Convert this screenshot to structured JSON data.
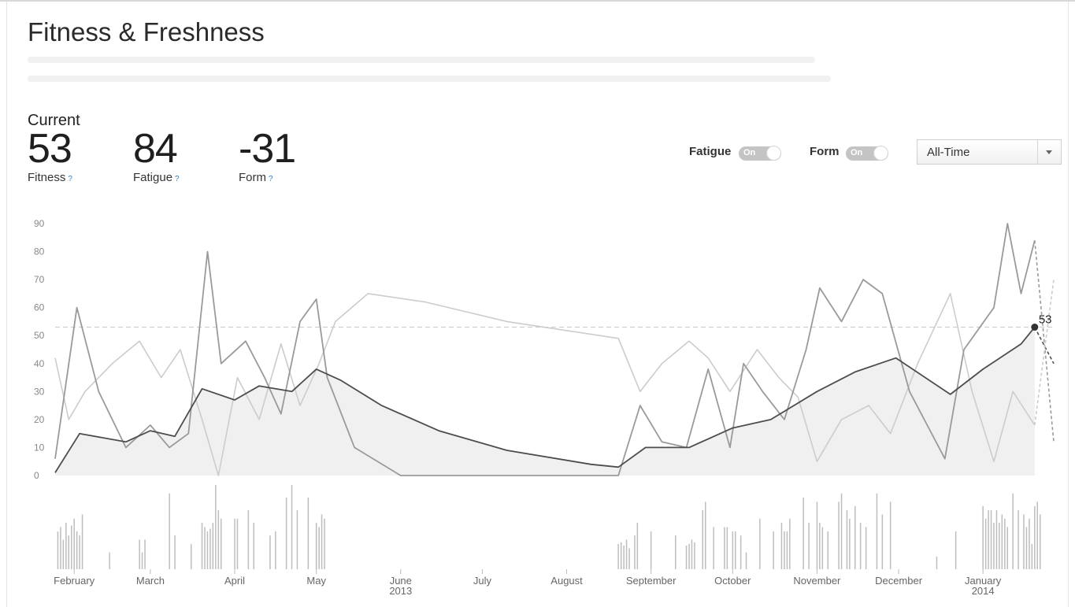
{
  "page": {
    "title": "Fitness & Freshness",
    "current_label": "Current"
  },
  "stats": [
    {
      "key": "fitness",
      "value": "53",
      "label": "Fitness",
      "help": "?"
    },
    {
      "key": "fatigue",
      "value": "84",
      "label": "Fatigue",
      "help": "?"
    },
    {
      "key": "form",
      "value": "-31",
      "label": "Form",
      "help": "?"
    }
  ],
  "controls": {
    "fatigue_toggle": {
      "label": "Fatigue",
      "state": "On"
    },
    "form_toggle": {
      "label": "Form",
      "state": "On"
    },
    "range_select": {
      "value": "All-Time",
      "icon": "chevron-down-icon"
    }
  },
  "colors": {
    "fitness": "#4d4d4d",
    "fatigue": "#9a9a9a",
    "form": "#cccccc",
    "fitness_fill": "#f0f0f0",
    "activity_bars": "#bdbdbd",
    "reference_line": "#c8c8c8"
  },
  "chart_data": {
    "type": "line",
    "x_range": [
      "2013-01-25",
      "2014-01-27"
    ],
    "ylim": [
      0,
      90
    ],
    "yticks": [
      0,
      10,
      20,
      30,
      40,
      50,
      60,
      70,
      80,
      90
    ],
    "grid": false,
    "reference_line": 53,
    "current_marker": {
      "date": "2014-01-20",
      "value": 53,
      "label": "53"
    },
    "xticks": [
      {
        "date": "2013-02-01",
        "label": "February",
        "sub": ""
      },
      {
        "date": "2013-03-01",
        "label": "March",
        "sub": ""
      },
      {
        "date": "2013-04-01",
        "label": "April",
        "sub": ""
      },
      {
        "date": "2013-05-01",
        "label": "May",
        "sub": ""
      },
      {
        "date": "2013-06-01",
        "label": "June",
        "sub": "2013"
      },
      {
        "date": "2013-07-01",
        "label": "July",
        "sub": ""
      },
      {
        "date": "2013-08-01",
        "label": "August",
        "sub": ""
      },
      {
        "date": "2013-09-01",
        "label": "September",
        "sub": ""
      },
      {
        "date": "2013-10-01",
        "label": "October",
        "sub": ""
      },
      {
        "date": "2013-11-01",
        "label": "November",
        "sub": ""
      },
      {
        "date": "2013-12-01",
        "label": "December",
        "sub": ""
      },
      {
        "date": "2014-01-01",
        "label": "January",
        "sub": "2014"
      }
    ],
    "series": [
      {
        "key": "fitness",
        "points": [
          [
            "2013-01-25",
            1
          ],
          [
            "2013-02-03",
            15
          ],
          [
            "2013-02-20",
            12
          ],
          [
            "2013-03-01",
            16
          ],
          [
            "2013-03-10",
            14
          ],
          [
            "2013-03-20",
            31
          ],
          [
            "2013-04-01",
            27
          ],
          [
            "2013-04-10",
            32
          ],
          [
            "2013-04-22",
            30
          ],
          [
            "2013-05-01",
            38
          ],
          [
            "2013-05-10",
            34
          ],
          [
            "2013-05-25",
            25
          ],
          [
            "2013-06-15",
            16
          ],
          [
            "2013-07-10",
            9
          ],
          [
            "2013-08-10",
            4
          ],
          [
            "2013-08-20",
            3
          ],
          [
            "2013-08-30",
            10
          ],
          [
            "2013-09-15",
            10
          ],
          [
            "2013-10-01",
            17
          ],
          [
            "2013-10-15",
            20
          ],
          [
            "2013-11-01",
            30
          ],
          [
            "2013-11-15",
            37
          ],
          [
            "2013-11-30",
            42
          ],
          [
            "2013-12-20",
            29
          ],
          [
            "2014-01-01",
            38
          ],
          [
            "2014-01-15",
            47
          ],
          [
            "2014-01-20",
            53
          ]
        ]
      },
      {
        "key": "fatigue",
        "points": [
          [
            "2013-01-25",
            6
          ],
          [
            "2013-02-02",
            60
          ],
          [
            "2013-02-10",
            30
          ],
          [
            "2013-02-20",
            10
          ],
          [
            "2013-03-01",
            18
          ],
          [
            "2013-03-08",
            10
          ],
          [
            "2013-03-15",
            15
          ],
          [
            "2013-03-22",
            80
          ],
          [
            "2013-03-27",
            40
          ],
          [
            "2013-04-05",
            48
          ],
          [
            "2013-04-12",
            35
          ],
          [
            "2013-04-18",
            22
          ],
          [
            "2013-04-25",
            55
          ],
          [
            "2013-05-01",
            63
          ],
          [
            "2013-05-05",
            35
          ],
          [
            "2013-05-15",
            10
          ],
          [
            "2013-06-01",
            0
          ],
          [
            "2013-06-30",
            0
          ],
          [
            "2013-08-20",
            0
          ],
          [
            "2013-08-28",
            25
          ],
          [
            "2013-09-05",
            12
          ],
          [
            "2013-09-14",
            10
          ],
          [
            "2013-09-22",
            38
          ],
          [
            "2013-09-30",
            10
          ],
          [
            "2013-10-05",
            40
          ],
          [
            "2013-10-12",
            30
          ],
          [
            "2013-10-20",
            20
          ],
          [
            "2013-10-28",
            45
          ],
          [
            "2013-11-02",
            67
          ],
          [
            "2013-11-10",
            55
          ],
          [
            "2013-11-18",
            70
          ],
          [
            "2013-11-25",
            65
          ],
          [
            "2013-12-05",
            30
          ],
          [
            "2013-12-18",
            6
          ],
          [
            "2013-12-25",
            45
          ],
          [
            "2014-01-05",
            60
          ],
          [
            "2014-01-10",
            90
          ],
          [
            "2014-01-15",
            65
          ],
          [
            "2014-01-20",
            84
          ]
        ]
      },
      {
        "key": "form",
        "points": [
          [
            "2013-01-25",
            42
          ],
          [
            "2013-01-30",
            20
          ],
          [
            "2013-02-05",
            30
          ],
          [
            "2013-02-15",
            40
          ],
          [
            "2013-02-25",
            48
          ],
          [
            "2013-03-05",
            35
          ],
          [
            "2013-03-12",
            45
          ],
          [
            "2013-03-20",
            20
          ],
          [
            "2013-03-26",
            0
          ],
          [
            "2013-04-02",
            35
          ],
          [
            "2013-04-10",
            20
          ],
          [
            "2013-04-18",
            47
          ],
          [
            "2013-04-25",
            25
          ],
          [
            "2013-05-02",
            40
          ],
          [
            "2013-05-08",
            55
          ],
          [
            "2013-05-20",
            65
          ],
          [
            "2013-06-10",
            62
          ],
          [
            "2013-07-10",
            55
          ],
          [
            "2013-08-20",
            49
          ],
          [
            "2013-08-28",
            30
          ],
          [
            "2013-09-05",
            40
          ],
          [
            "2013-09-15",
            48
          ],
          [
            "2013-09-22",
            42
          ],
          [
            "2013-09-30",
            30
          ],
          [
            "2013-10-10",
            45
          ],
          [
            "2013-10-18",
            35
          ],
          [
            "2013-10-25",
            28
          ],
          [
            "2013-11-01",
            5
          ],
          [
            "2013-11-10",
            20
          ],
          [
            "2013-11-20",
            25
          ],
          [
            "2013-11-28",
            15
          ],
          [
            "2013-12-08",
            40
          ],
          [
            "2013-12-20",
            65
          ],
          [
            "2013-12-28",
            30
          ],
          [
            "2014-01-05",
            5
          ],
          [
            "2014-01-12",
            30
          ],
          [
            "2014-01-20",
            18
          ]
        ]
      }
    ],
    "projections": [
      {
        "key": "fitness",
        "points": [
          [
            "2014-01-20",
            53
          ],
          [
            "2014-01-27",
            40
          ]
        ]
      },
      {
        "key": "fatigue",
        "points": [
          [
            "2014-01-20",
            84
          ],
          [
            "2014-01-27",
            12
          ]
        ]
      },
      {
        "key": "form",
        "points": [
          [
            "2014-01-20",
            18
          ],
          [
            "2014-01-27",
            70
          ]
        ]
      }
    ],
    "activity": [
      [
        "2013-01-26",
        0.45
      ],
      [
        "2013-01-27",
        0.5
      ],
      [
        "2013-01-28",
        0.35
      ],
      [
        "2013-01-29",
        0.55
      ],
      [
        "2013-01-30",
        0.4
      ],
      [
        "2013-01-31",
        0.52
      ],
      [
        "2013-02-01",
        0.6
      ],
      [
        "2013-02-02",
        0.45
      ],
      [
        "2013-02-03",
        0.4
      ],
      [
        "2013-02-04",
        0.65
      ],
      [
        "2013-02-14",
        0.2
      ],
      [
        "2013-02-25",
        0.35
      ],
      [
        "2013-02-26",
        0.2
      ],
      [
        "2013-02-27",
        0.35
      ],
      [
        "2013-03-08",
        0.9
      ],
      [
        "2013-03-10",
        0.4
      ],
      [
        "2013-03-16",
        0.3
      ],
      [
        "2013-03-20",
        0.55
      ],
      [
        "2013-03-21",
        0.5
      ],
      [
        "2013-03-22",
        0.45
      ],
      [
        "2013-03-23",
        0.48
      ],
      [
        "2013-03-24",
        0.55
      ],
      [
        "2013-03-25",
        1.0
      ],
      [
        "2013-03-26",
        0.7
      ],
      [
        "2013-03-27",
        0.6
      ],
      [
        "2013-04-01",
        0.6
      ],
      [
        "2013-04-02",
        0.6
      ],
      [
        "2013-04-06",
        0.7
      ],
      [
        "2013-04-08",
        0.55
      ],
      [
        "2013-04-14",
        0.4
      ],
      [
        "2013-04-16",
        0.45
      ],
      [
        "2013-04-20",
        0.85
      ],
      [
        "2013-04-22",
        1.0
      ],
      [
        "2013-04-24",
        0.7
      ],
      [
        "2013-04-28",
        0.85
      ],
      [
        "2013-05-01",
        0.55
      ],
      [
        "2013-05-02",
        0.5
      ],
      [
        "2013-05-03",
        0.65
      ],
      [
        "2013-05-04",
        0.6
      ],
      [
        "2013-08-20",
        0.3
      ],
      [
        "2013-08-21",
        0.32
      ],
      [
        "2013-08-22",
        0.28
      ],
      [
        "2013-08-23",
        0.35
      ],
      [
        "2013-08-24",
        0.25
      ],
      [
        "2013-08-26",
        0.4
      ],
      [
        "2013-08-27",
        0.55
      ],
      [
        "2013-09-01",
        0.45
      ],
      [
        "2013-09-10",
        0.4
      ],
      [
        "2013-09-14",
        0.28
      ],
      [
        "2013-09-15",
        0.3
      ],
      [
        "2013-09-16",
        0.35
      ],
      [
        "2013-09-17",
        0.32
      ],
      [
        "2013-09-20",
        0.7
      ],
      [
        "2013-09-21",
        0.8
      ],
      [
        "2013-09-24",
        0.5
      ],
      [
        "2013-09-28",
        0.5
      ],
      [
        "2013-09-29",
        0.5
      ],
      [
        "2013-10-01",
        0.45
      ],
      [
        "2013-10-02",
        0.45
      ],
      [
        "2013-10-04",
        0.4
      ],
      [
        "2013-10-06",
        0.2
      ],
      [
        "2013-10-11",
        0.6
      ],
      [
        "2013-10-16",
        0.45
      ],
      [
        "2013-10-19",
        0.55
      ],
      [
        "2013-10-20",
        0.45
      ],
      [
        "2013-10-21",
        0.45
      ],
      [
        "2013-10-22",
        0.6
      ],
      [
        "2013-10-27",
        0.85
      ],
      [
        "2013-10-29",
        0.55
      ],
      [
        "2013-11-01",
        0.8
      ],
      [
        "2013-11-02",
        0.55
      ],
      [
        "2013-11-03",
        0.5
      ],
      [
        "2013-11-05",
        0.45
      ],
      [
        "2013-11-09",
        0.8
      ],
      [
        "2013-11-10",
        0.9
      ],
      [
        "2013-11-12",
        0.7
      ],
      [
        "2013-11-13",
        0.6
      ],
      [
        "2013-11-15",
        0.75
      ],
      [
        "2013-11-17",
        0.55
      ],
      [
        "2013-11-19",
        0.5
      ],
      [
        "2013-11-23",
        0.9
      ],
      [
        "2013-11-25",
        0.65
      ],
      [
        "2013-11-28",
        0.8
      ],
      [
        "2013-12-15",
        0.15
      ],
      [
        "2013-12-22",
        0.45
      ],
      [
        "2014-01-01",
        0.75
      ],
      [
        "2014-01-02",
        0.6
      ],
      [
        "2014-01-03",
        0.7
      ],
      [
        "2014-01-04",
        0.7
      ],
      [
        "2014-01-05",
        0.55
      ],
      [
        "2014-01-06",
        0.7
      ],
      [
        "2014-01-07",
        0.55
      ],
      [
        "2014-01-08",
        0.65
      ],
      [
        "2014-01-09",
        0.6
      ],
      [
        "2014-01-10",
        0.5
      ],
      [
        "2014-01-12",
        0.9
      ],
      [
        "2014-01-14",
        0.7
      ],
      [
        "2014-01-16",
        0.65
      ],
      [
        "2014-01-17",
        0.5
      ],
      [
        "2014-01-18",
        0.6
      ],
      [
        "2014-01-19",
        0.3
      ],
      [
        "2014-01-20",
        0.75
      ],
      [
        "2014-01-21",
        0.8
      ],
      [
        "2014-01-22",
        0.65
      ]
    ]
  }
}
